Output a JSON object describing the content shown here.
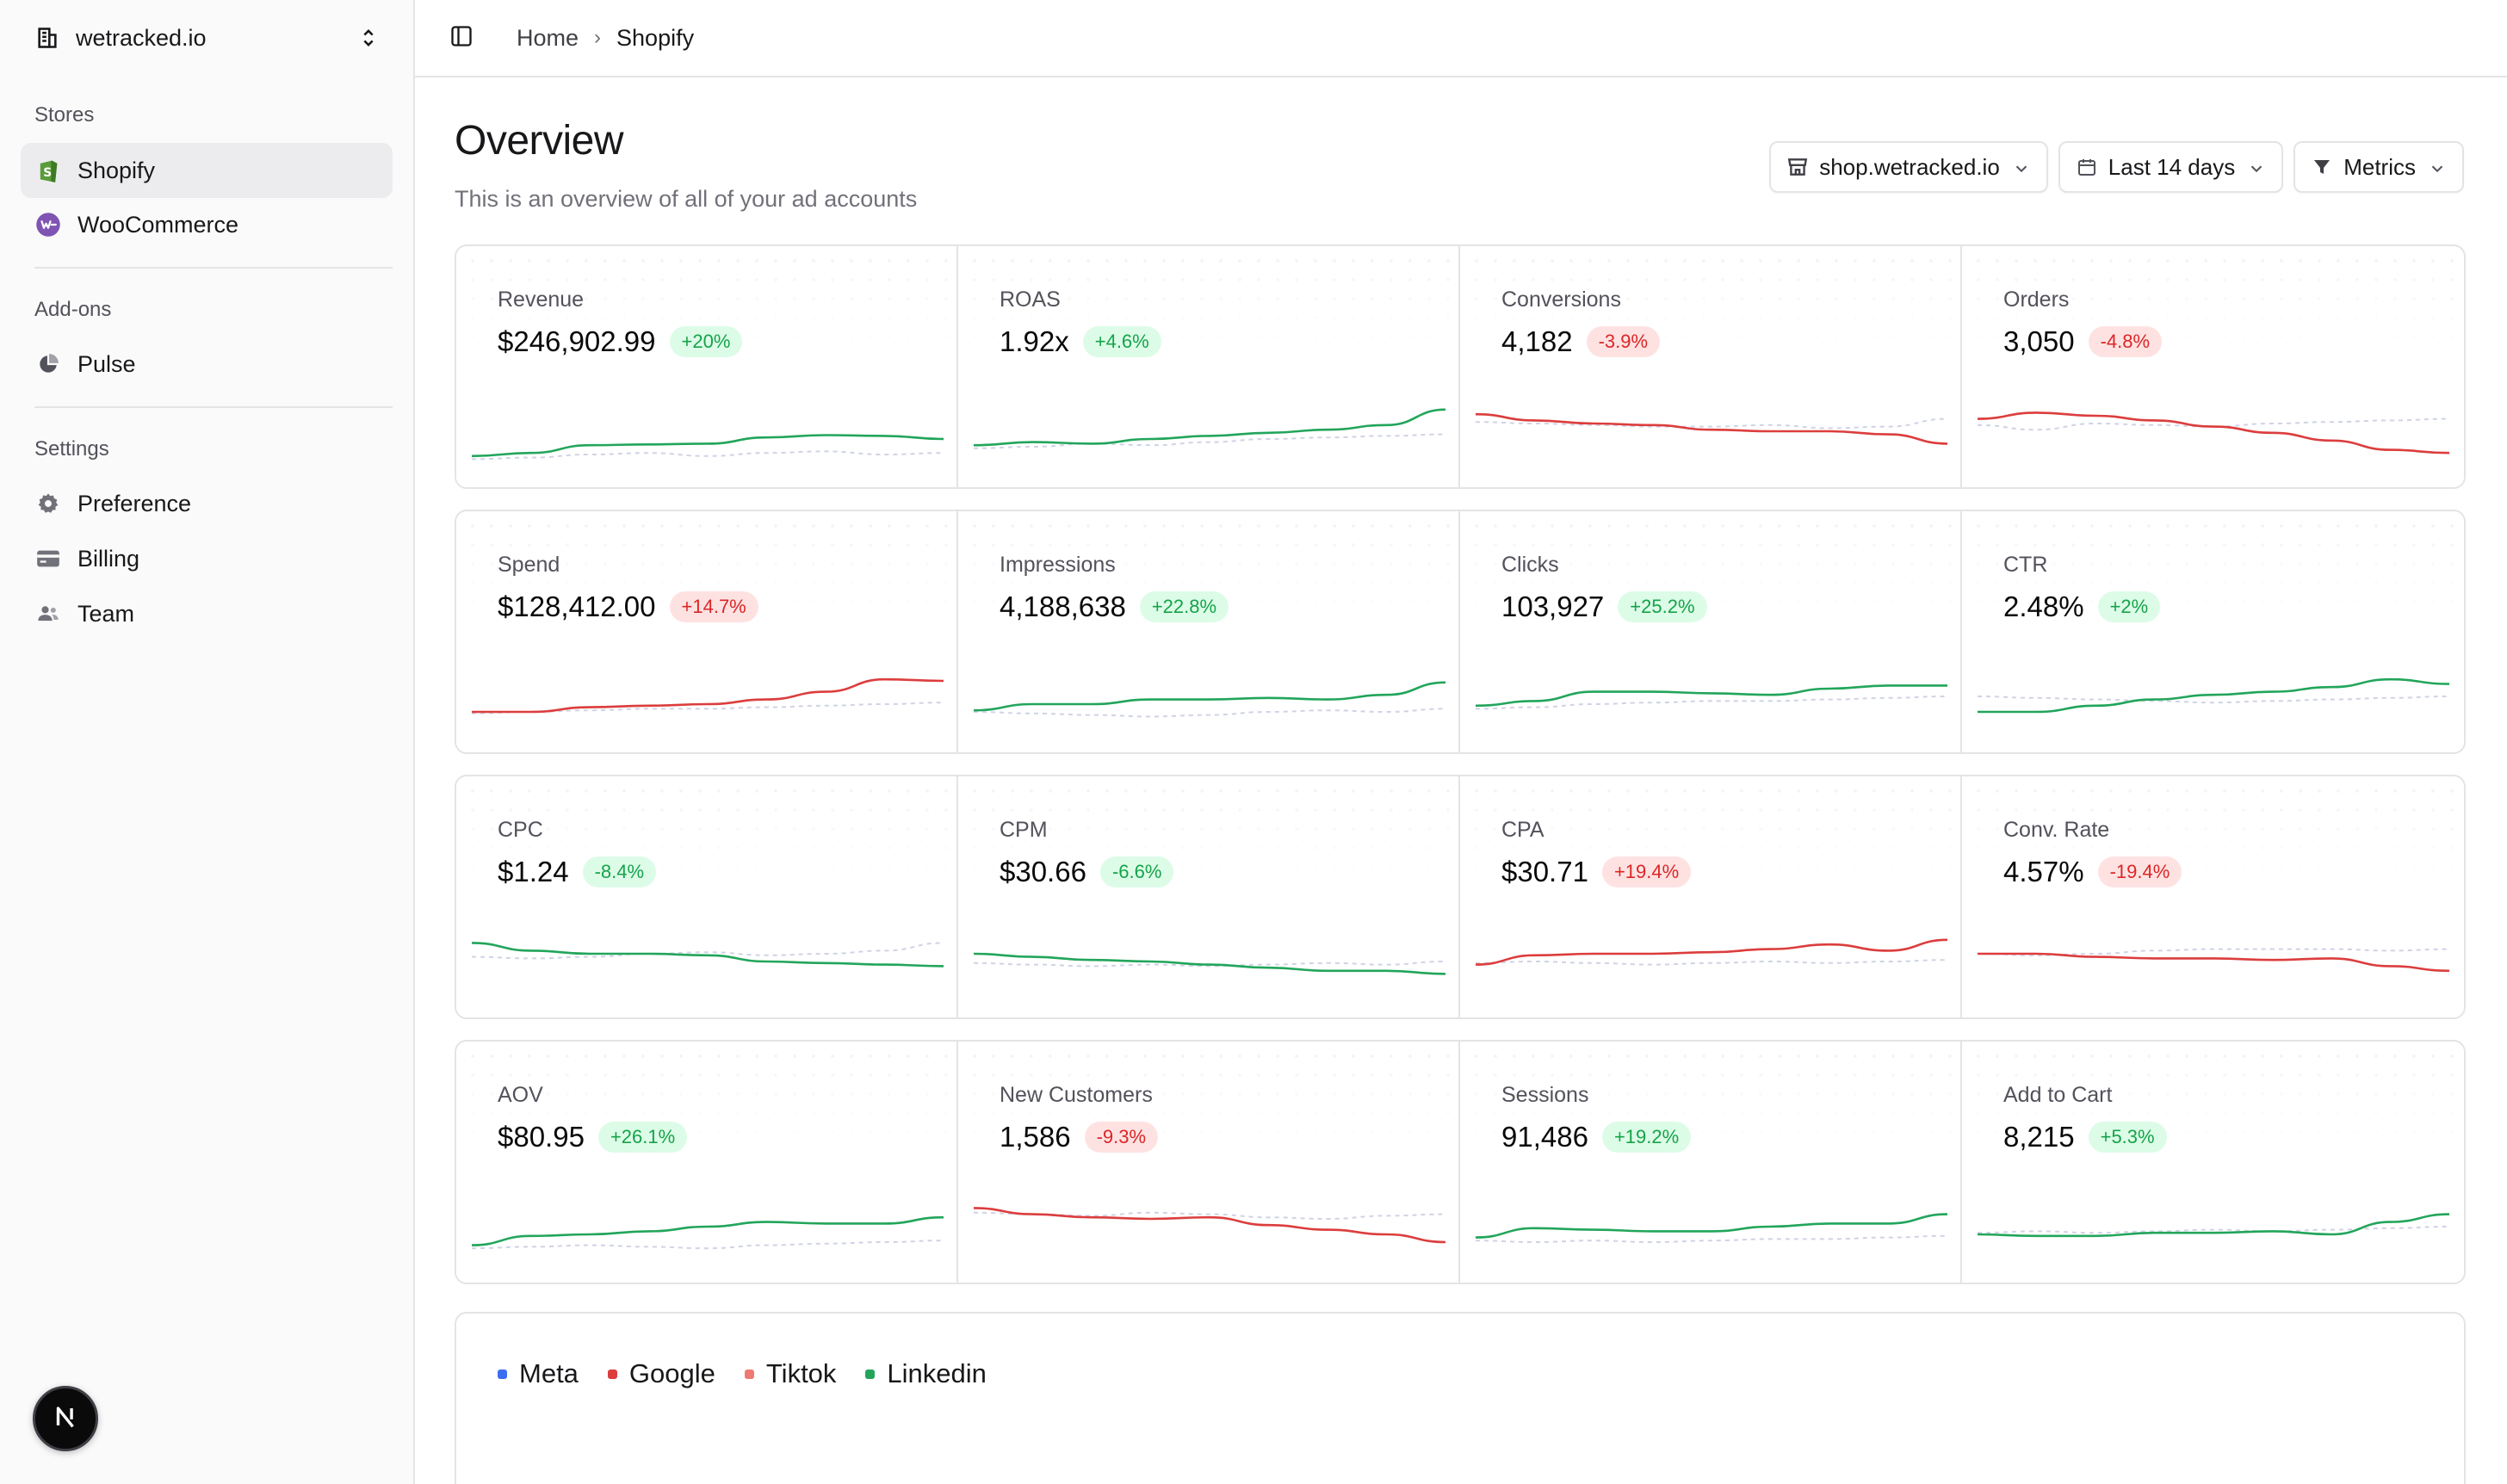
{
  "sidebar": {
    "brand": "wetracked.io",
    "sections": {
      "stores": "Stores",
      "addons": "Add-ons",
      "settings": "Settings"
    },
    "stores": [
      {
        "label": "Shopify",
        "icon": "shopify-icon",
        "active": true
      },
      {
        "label": "WooCommerce",
        "icon": "woocommerce-icon",
        "active": false
      }
    ],
    "addons": [
      {
        "label": "Pulse",
        "icon": "pie-chart-icon"
      }
    ],
    "settings": [
      {
        "label": "Preference",
        "icon": "gear-icon"
      },
      {
        "label": "Billing",
        "icon": "credit-card-icon"
      },
      {
        "label": "Team",
        "icon": "users-icon"
      }
    ],
    "badge": "N"
  },
  "header": {
    "breadcrumb": [
      "Home",
      "Shopify"
    ],
    "separator": "›"
  },
  "page": {
    "title": "Overview",
    "subtitle": "This is an overview of all of your ad accounts"
  },
  "filters": {
    "store": "shop.wetracked.io",
    "range": "Last 14 days",
    "metrics": "Metrics"
  },
  "colors": {
    "good": "#22a55b",
    "bad": "#dc3d3d",
    "compare": "#cfd3e6"
  },
  "metrics": [
    {
      "label": "Revenue",
      "value": "$246,902.99",
      "change": "+20%",
      "trend": "good",
      "series": [
        0.18,
        0.22,
        0.32,
        0.33,
        0.34,
        0.42,
        0.45,
        0.44,
        0.4
      ],
      "compare": [
        0.14,
        0.16,
        0.2,
        0.22,
        0.18,
        0.22,
        0.24,
        0.2,
        0.22
      ]
    },
    {
      "label": "ROAS",
      "value": "1.92x",
      "change": "+4.6%",
      "trend": "good",
      "series": [
        0.32,
        0.36,
        0.34,
        0.4,
        0.44,
        0.48,
        0.52,
        0.58,
        0.78
      ],
      "compare": [
        0.28,
        0.3,
        0.34,
        0.32,
        0.36,
        0.4,
        0.42,
        0.44,
        0.46
      ]
    },
    {
      "label": "Conversions",
      "value": "4,182",
      "change": "-3.9%",
      "trend": "bad",
      "series": [
        0.72,
        0.64,
        0.6,
        0.58,
        0.52,
        0.5,
        0.5,
        0.46,
        0.34
      ],
      "compare": [
        0.62,
        0.6,
        0.58,
        0.56,
        0.56,
        0.58,
        0.54,
        0.56,
        0.66
      ]
    },
    {
      "label": "Orders",
      "value": "3,050",
      "change": "-4.8%",
      "trend": "bad",
      "series": [
        0.66,
        0.74,
        0.7,
        0.64,
        0.56,
        0.48,
        0.38,
        0.26,
        0.22
      ],
      "compare": [
        0.58,
        0.52,
        0.6,
        0.58,
        0.56,
        0.6,
        0.62,
        0.64,
        0.66
      ]
    },
    {
      "label": "Spend",
      "value": "$128,412.00",
      "change": "+14.7%",
      "trend": "bad",
      "series": [
        0.3,
        0.3,
        0.36,
        0.38,
        0.4,
        0.46,
        0.56,
        0.72,
        0.7
      ],
      "compare": [
        0.28,
        0.3,
        0.32,
        0.34,
        0.34,
        0.36,
        0.38,
        0.4,
        0.42
      ]
    },
    {
      "label": "Impressions",
      "value": "4,188,638",
      "change": "+22.8%",
      "trend": "good",
      "series": [
        0.32,
        0.4,
        0.4,
        0.46,
        0.46,
        0.48,
        0.46,
        0.52,
        0.68
      ],
      "compare": [
        0.3,
        0.28,
        0.26,
        0.24,
        0.26,
        0.3,
        0.32,
        0.3,
        0.34
      ]
    },
    {
      "label": "Clicks",
      "value": "103,927",
      "change": "+25.2%",
      "trend": "good",
      "series": [
        0.38,
        0.44,
        0.56,
        0.56,
        0.54,
        0.52,
        0.6,
        0.64,
        0.64
      ],
      "compare": [
        0.34,
        0.36,
        0.4,
        0.42,
        0.44,
        0.44,
        0.46,
        0.48,
        0.5
      ]
    },
    {
      "label": "CTR",
      "value": "2.48%",
      "change": "+2%",
      "trend": "good",
      "series": [
        0.3,
        0.3,
        0.38,
        0.46,
        0.52,
        0.56,
        0.62,
        0.72,
        0.66
      ],
      "compare": [
        0.5,
        0.48,
        0.46,
        0.44,
        0.42,
        0.44,
        0.46,
        0.48,
        0.5
      ]
    },
    {
      "label": "CPC",
      "value": "$1.24",
      "change": "-8.4%",
      "trend": "good",
      "series": [
        0.74,
        0.64,
        0.6,
        0.6,
        0.58,
        0.5,
        0.48,
        0.46,
        0.44
      ],
      "compare": [
        0.56,
        0.54,
        0.56,
        0.6,
        0.62,
        0.58,
        0.6,
        0.64,
        0.74
      ]
    },
    {
      "label": "CPM",
      "value": "$30.66",
      "change": "-6.6%",
      "trend": "good",
      "series": [
        0.6,
        0.56,
        0.52,
        0.5,
        0.46,
        0.42,
        0.38,
        0.38,
        0.34
      ],
      "compare": [
        0.48,
        0.46,
        0.44,
        0.46,
        0.44,
        0.46,
        0.48,
        0.46,
        0.5
      ]
    },
    {
      "label": "CPA",
      "value": "$30.71",
      "change": "+19.4%",
      "trend": "bad",
      "series": [
        0.46,
        0.58,
        0.6,
        0.6,
        0.62,
        0.66,
        0.72,
        0.64,
        0.78
      ],
      "compare": [
        0.48,
        0.5,
        0.48,
        0.46,
        0.48,
        0.5,
        0.48,
        0.5,
        0.52
      ]
    },
    {
      "label": "Conv. Rate",
      "value": "4.57%",
      "change": "-19.4%",
      "trend": "bad",
      "series": [
        0.6,
        0.6,
        0.56,
        0.54,
        0.54,
        0.52,
        0.54,
        0.44,
        0.38
      ],
      "compare": [
        0.6,
        0.58,
        0.6,
        0.64,
        0.66,
        0.66,
        0.66,
        0.64,
        0.66
      ]
    },
    {
      "label": "AOV",
      "value": "$80.95",
      "change": "+26.1%",
      "trend": "good",
      "series": [
        0.26,
        0.38,
        0.4,
        0.44,
        0.5,
        0.56,
        0.54,
        0.54,
        0.62
      ],
      "compare": [
        0.22,
        0.24,
        0.26,
        0.24,
        0.22,
        0.26,
        0.28,
        0.3,
        0.32
      ]
    },
    {
      "label": "New Customers",
      "value": "1,586",
      "change": "-9.3%",
      "trend": "bad",
      "series": [
        0.74,
        0.66,
        0.62,
        0.6,
        0.62,
        0.52,
        0.46,
        0.4,
        0.3
      ],
      "compare": [
        0.68,
        0.66,
        0.64,
        0.68,
        0.66,
        0.62,
        0.6,
        0.64,
        0.66
      ]
    },
    {
      "label": "Sessions",
      "value": "91,486",
      "change": "+19.2%",
      "trend": "good",
      "series": [
        0.36,
        0.48,
        0.46,
        0.44,
        0.44,
        0.5,
        0.54,
        0.54,
        0.66
      ],
      "compare": [
        0.32,
        0.3,
        0.32,
        0.3,
        0.32,
        0.34,
        0.34,
        0.36,
        0.38
      ]
    },
    {
      "label": "Add to Cart",
      "value": "8,215",
      "change": "+5.3%",
      "trend": "good",
      "series": [
        0.4,
        0.38,
        0.38,
        0.42,
        0.42,
        0.44,
        0.4,
        0.56,
        0.66
      ],
      "compare": [
        0.42,
        0.44,
        0.42,
        0.44,
        0.46,
        0.44,
        0.46,
        0.48,
        0.5
      ]
    }
  ],
  "chart_legend": [
    {
      "label": "Meta",
      "color": "#3b6ef0"
    },
    {
      "label": "Google",
      "color": "#dc3d3d"
    },
    {
      "label": "Tiktok",
      "color": "#ee7b73"
    },
    {
      "label": "Linkedin",
      "color": "#22a55b"
    }
  ]
}
